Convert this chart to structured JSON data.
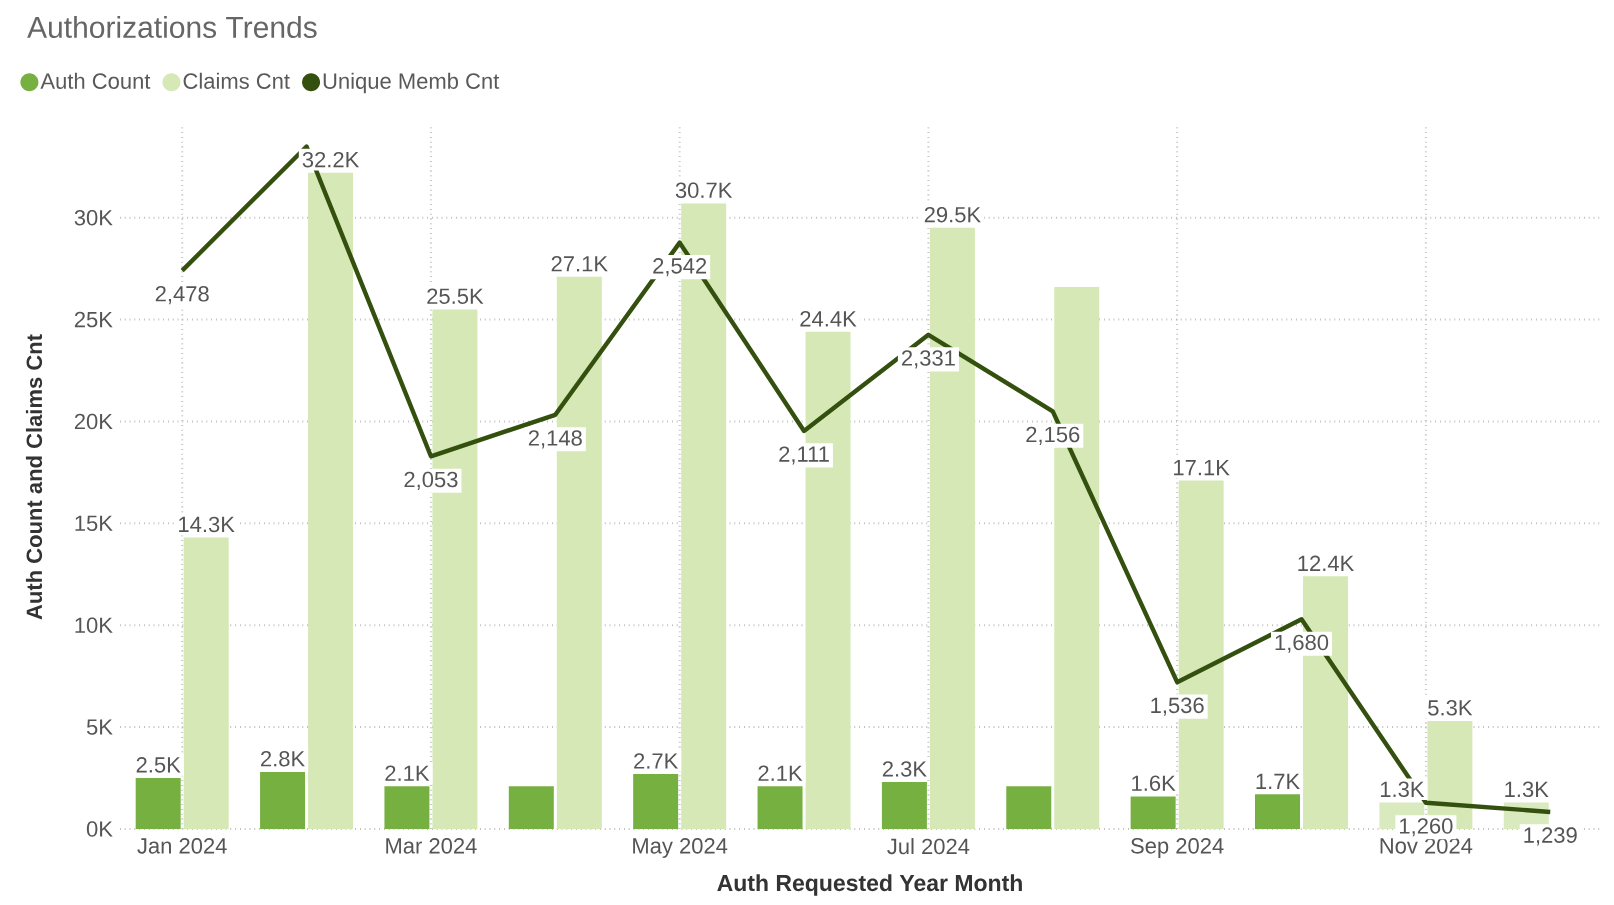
{
  "chart_data": {
    "type": "bar",
    "title": "Authorizations Trends",
    "xlabel": "Auth Requested Year Month",
    "ylabel": "Auth Count and Claims Cnt",
    "categories": [
      "Jan 2024",
      null,
      "Mar 2024",
      null,
      "May 2024",
      null,
      "Jul 2024",
      null,
      "Sep 2024",
      null,
      "Nov 2024",
      null
    ],
    "series": [
      {
        "name": "Auth Count",
        "color": "#76b041",
        "colors": [
          "#76b041",
          "#76b041",
          "#76b041",
          "#76b041",
          "#76b041",
          "#76b041",
          "#76b041",
          "#76b041",
          "#76b041",
          "#76b041",
          "#d9eabf",
          "#d9eabf"
        ],
        "values": [
          2500,
          2800,
          2100,
          2100,
          2700,
          2100,
          2300,
          2100,
          1600,
          1700,
          1300,
          1300
        ],
        "value_labels": [
          "2.5K",
          "2.8K",
          "2.1K",
          null,
          "2.7K",
          "2.1K",
          "2.3K",
          null,
          "1.6K",
          "1.7K",
          "1.3K",
          "1.3K"
        ]
      },
      {
        "name": "Claims Cnt",
        "color": "#d5e8b5",
        "values": [
          14300,
          32200,
          25500,
          27100,
          30700,
          24400,
          29500,
          26600,
          17100,
          12400,
          5300,
          null
        ],
        "value_labels": [
          "14.3K",
          "32.2K",
          "25.5K",
          "27.1K",
          "30.7K",
          "24.4K",
          "29.5K",
          null,
          "17.1K",
          "12.4K",
          "5.3K",
          null
        ]
      },
      {
        "name": "Unique Memb Cnt",
        "type": "line",
        "axis": "y2",
        "color": "#34500f",
        "values": [
          2478,
          2762,
          2053,
          2148,
          2542,
          2111,
          2331,
          2156,
          1536,
          1680,
          1260,
          1239
        ],
        "value_labels": [
          "2,478",
          null,
          "2,053",
          "2,148",
          "2,542",
          "2,111",
          "2,331",
          "2,156",
          "1,536",
          "1,680",
          "1,260",
          "1,239"
        ]
      }
    ],
    "ylim": [
      0,
      34500
    ],
    "yticks": [
      {
        "value": 0,
        "label": "0K"
      },
      {
        "value": 5000,
        "label": "5K"
      },
      {
        "value": 10000,
        "label": "10K"
      },
      {
        "value": 15000,
        "label": "15K"
      },
      {
        "value": 20000,
        "label": "20K"
      },
      {
        "value": 25000,
        "label": "25K"
      },
      {
        "value": 30000,
        "label": "30K"
      }
    ],
    "y2lim": [
      1200,
      2809
    ],
    "grid": true,
    "legend": "top left",
    "marker": "none",
    "line_style": "solid"
  }
}
